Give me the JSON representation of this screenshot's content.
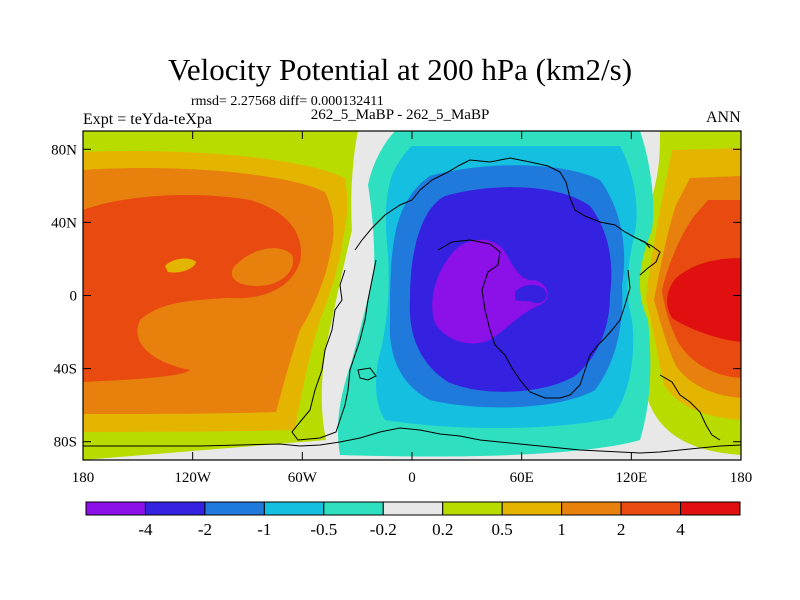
{
  "chart_data": {
    "type": "contour-map",
    "title": "Velocity Potential at 200 hPa (km2/s)",
    "stats_text": "rmsd= 2.27568  diff= 0.000132411",
    "subtitle": "262_5_MaBP - 262_5_MaBP",
    "left_label": "Expt = teYda-teXpa",
    "right_label": "ANN",
    "x_ticks": [
      "180",
      "120W",
      "60W",
      "0",
      "60E",
      "120E",
      "180"
    ],
    "x_tick_values": [
      -180,
      -120,
      -60,
      0,
      60,
      120,
      180
    ],
    "y_ticks": [
      "80N",
      "40N",
      "0",
      "40S",
      "80S"
    ],
    "y_tick_values": [
      80,
      40,
      0,
      -40,
      -80
    ],
    "xlim": [
      -180,
      180
    ],
    "ylim": [
      -90,
      90
    ],
    "colorbar_labels": [
      "-4",
      "-2",
      "-1",
      "-0.5",
      "-0.2",
      "0.2",
      "0.5",
      "1",
      "2",
      "4"
    ],
    "colorbar_colors": [
      "#8c10e8",
      "#3522e0",
      "#1f7adc",
      "#14bfe0",
      "#2fe0c0",
      "#e8e8e8",
      "#b9dc00",
      "#e4b500",
      "#e8800d",
      "#e84a10",
      "#e01010"
    ],
    "field_description": "Negative velocity potential centered over 0-60E near the equator; positive maxima over the central Pacific near 150E-180 and 180-60W"
  }
}
